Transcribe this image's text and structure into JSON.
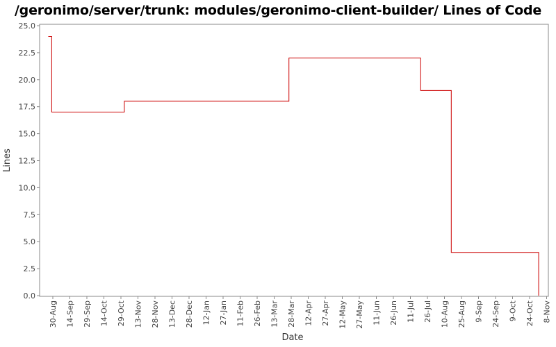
{
  "chart_data": {
    "type": "line",
    "step": true,
    "title": "/geronimo/server/trunk: modules/geronimo-client-builder/ Lines of Code",
    "xlabel": "Date",
    "ylabel": "Lines",
    "ylim": [
      0,
      25
    ],
    "yticks": [
      "0.0",
      "2.5",
      "5.0",
      "7.5",
      "10.0",
      "12.5",
      "15.0",
      "17.5",
      "20.0",
      "22.5",
      "25.0"
    ],
    "xticks": [
      "30-Aug",
      "14-Sep",
      "29-Sep",
      "14-Oct",
      "29-Oct",
      "13-Nov",
      "28-Nov",
      "13-Dec",
      "28-Dec",
      "12-Jan",
      "27-Jan",
      "11-Feb",
      "26-Feb",
      "13-Mar",
      "28-Mar",
      "12-Apr",
      "27-Apr",
      "12-May",
      "27-May",
      "11-Jun",
      "26-Jun",
      "11-Jul",
      "26-Jul",
      "10-Aug",
      "25-Aug",
      "9-Sep",
      "24-Sep",
      "9-Oct",
      "24-Oct",
      "8-Nov"
    ],
    "series": [
      {
        "color": "#cc0000",
        "points": [
          {
            "x": "26-Aug",
            "y": 24
          },
          {
            "x": "29-Aug",
            "y": 17
          },
          {
            "x": "1-Nov",
            "y": 18
          },
          {
            "x": "26-Mar",
            "y": 22
          },
          {
            "x": "20-Jul",
            "y": 19
          },
          {
            "x": "16-Aug",
            "y": 4
          },
          {
            "x": "1-Nov",
            "y": 0
          }
        ]
      }
    ],
    "grid": false
  }
}
